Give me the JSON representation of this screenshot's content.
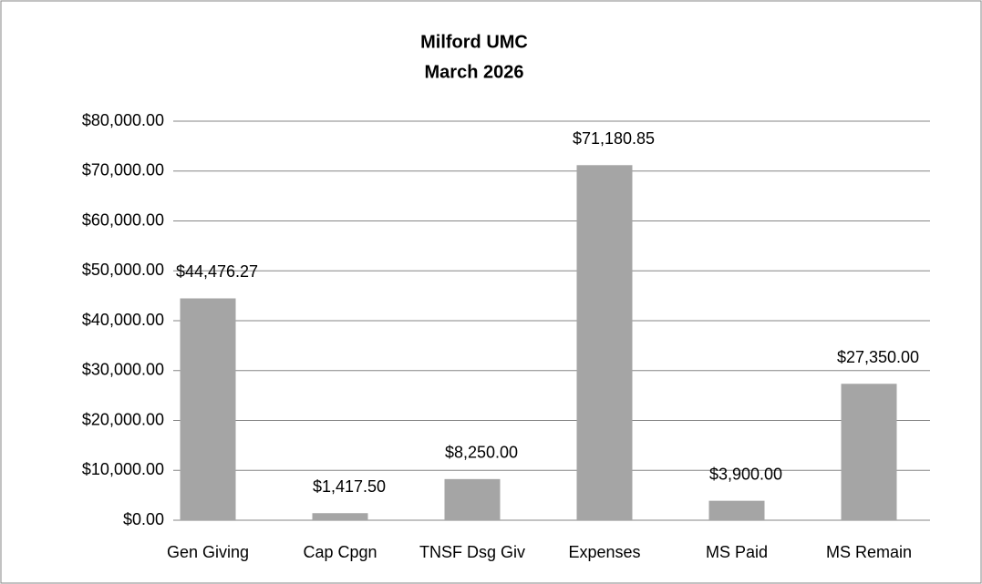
{
  "chart_data": {
    "type": "bar",
    "title": "Milford UMC",
    "subtitle": "March 2026",
    "categories": [
      "Gen Giving",
      "Cap Cpgn",
      "TNSF Dsg Giv",
      "Expenses",
      "MS Paid",
      "MS Remain"
    ],
    "values": [
      44476.27,
      1417.5,
      8250,
      71180.85,
      3900,
      27350
    ],
    "value_labels": [
      "$44,476.27",
      "$1,417.50",
      "$8,250.00",
      "$71,180.85",
      "$3,900.00",
      "$27,350.00"
    ],
    "color": "#a5a5a5",
    "ylim": [
      0,
      80000
    ],
    "yticks": [
      {
        "value": 0,
        "label": "$0.00"
      },
      {
        "value": 10000,
        "label": "$10,000.00"
      },
      {
        "value": 20000,
        "label": "$20,000.00"
      },
      {
        "value": 30000,
        "label": "$30,000.00"
      },
      {
        "value": 40000,
        "label": "$40,000.00"
      },
      {
        "value": 50000,
        "label": "$50,000.00"
      },
      {
        "value": 60000,
        "label": "$60,000.00"
      },
      {
        "value": 70000,
        "label": "$70,000.00"
      },
      {
        "value": 80000,
        "label": "$80,000.00"
      }
    ],
    "grid": true
  }
}
